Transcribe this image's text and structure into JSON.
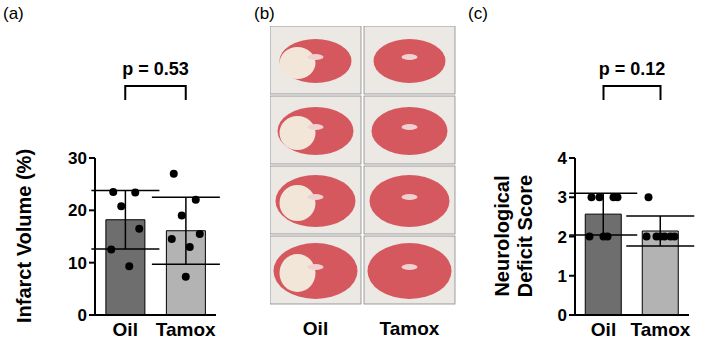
{
  "chart_data": [
    {
      "type": "bar",
      "panel_label": "(a)",
      "annotation": "p = 0.53",
      "y_label": "Infarct Volume (%)",
      "categories": [
        "Oil",
        "Tamox"
      ],
      "values": [
        18.2,
        16.1
      ],
      "errors": [
        5.6,
        6.4
      ],
      "points": [
        [
          23.5,
          23.4,
          20.8,
          16.5,
          12.5,
          9.3
        ],
        [
          27,
          22,
          19,
          15.5,
          14.5,
          13,
          7.3
        ]
      ],
      "colors": [
        "#6e6e6e",
        "#b3b3b3"
      ],
      "ylim": [
        0,
        30
      ],
      "yticks": [
        0,
        10,
        20,
        30
      ]
    },
    {
      "type": "bar",
      "panel_label": "(c)",
      "annotation": "p = 0.12",
      "y_label": "Neurological Deficit Score",
      "categories": [
        "Oil",
        "Tamox"
      ],
      "values": [
        2.57,
        2.14
      ],
      "errors": [
        0.53,
        0.38
      ],
      "points": [
        [
          3,
          3,
          3,
          3,
          2,
          2,
          2
        ],
        [
          3,
          2,
          2,
          2,
          2,
          2,
          2
        ]
      ],
      "colors": [
        "#6e6e6e",
        "#b3b3b3"
      ],
      "ylim": [
        0,
        4
      ],
      "yticks": [
        0,
        1,
        2,
        3,
        4
      ]
    }
  ],
  "image_panel": {
    "panel_label": "(b)",
    "columns": [
      "Oil",
      "Tamox"
    ]
  }
}
